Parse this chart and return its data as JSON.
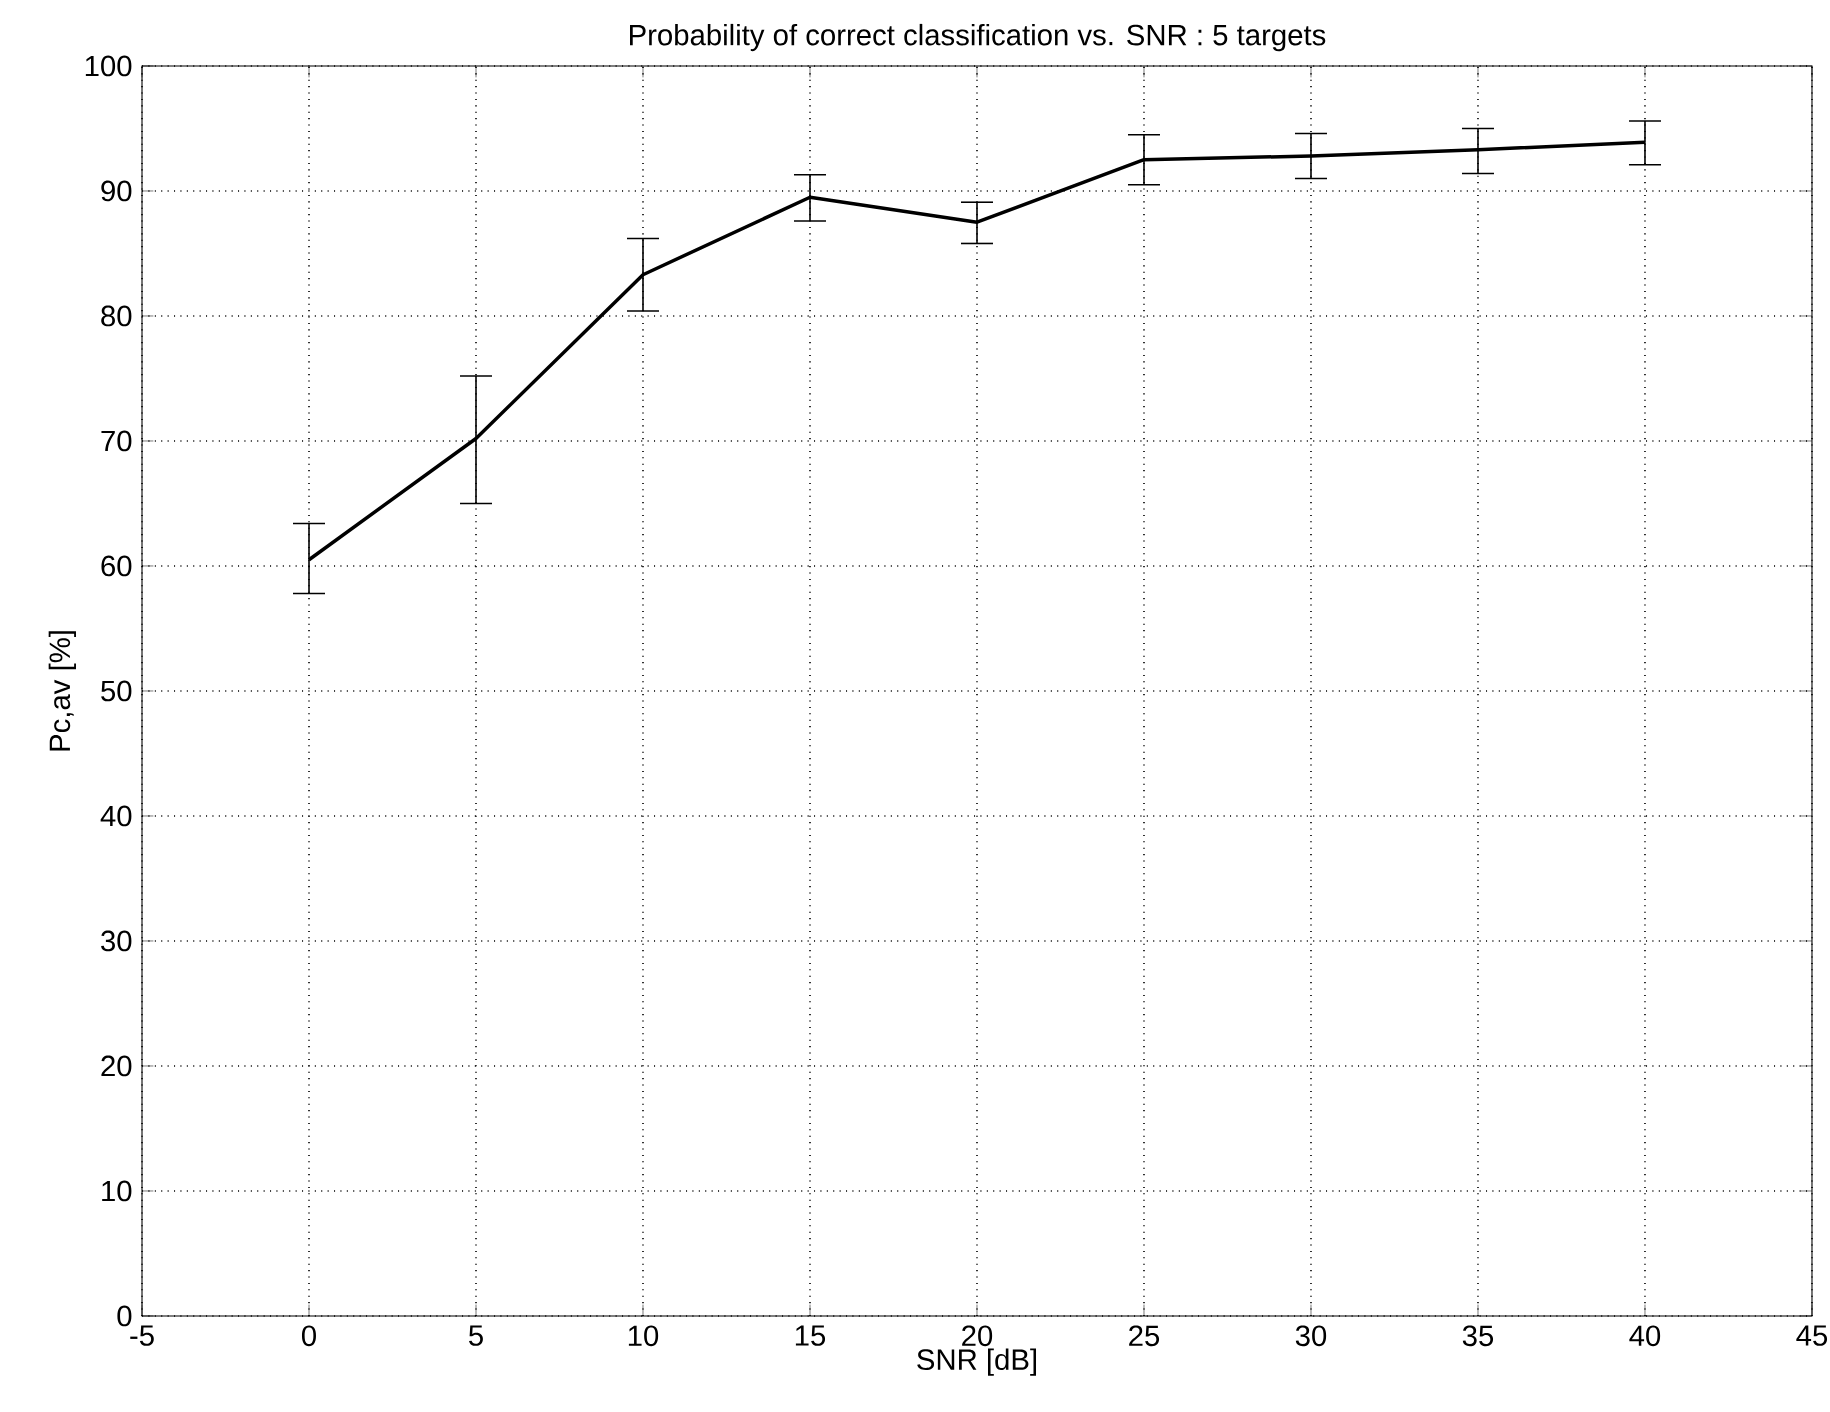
{
  "chart_data": {
    "type": "line",
    "title": "Probability of correct classification vs. SNR : 5 targets",
    "xlabel": "SNR [dB]",
    "ylabel": "Pc,av [%]",
    "x": [
      0,
      5,
      10,
      15,
      20,
      25,
      30,
      35,
      40
    ],
    "series": [
      {
        "color": "#000000",
        "values": [
          60.5,
          70.2,
          83.3,
          89.5,
          87.5,
          92.5,
          92.8,
          93.3,
          93.9
        ],
        "errors": [
          [
            57.8,
            63.4
          ],
          [
            65,
            75.2
          ],
          [
            80.4,
            86.2
          ],
          [
            87.6,
            91.3
          ],
          [
            85.8,
            89.1
          ],
          [
            90.5,
            94.5
          ],
          [
            91,
            94.6
          ],
          [
            91.4,
            95
          ],
          [
            92.1,
            95.6
          ]
        ]
      }
    ],
    "xlim": [
      -5,
      45
    ],
    "xticks": [
      -5,
      0,
      5,
      10,
      15,
      20,
      25,
      30,
      35,
      40,
      45
    ],
    "ylim": [
      0,
      100
    ],
    "yticks": [
      0,
      10,
      20,
      30,
      40,
      50,
      60,
      70,
      80,
      90,
      100
    ],
    "grid": true,
    "marker": "none",
    "line_style": "solid"
  }
}
